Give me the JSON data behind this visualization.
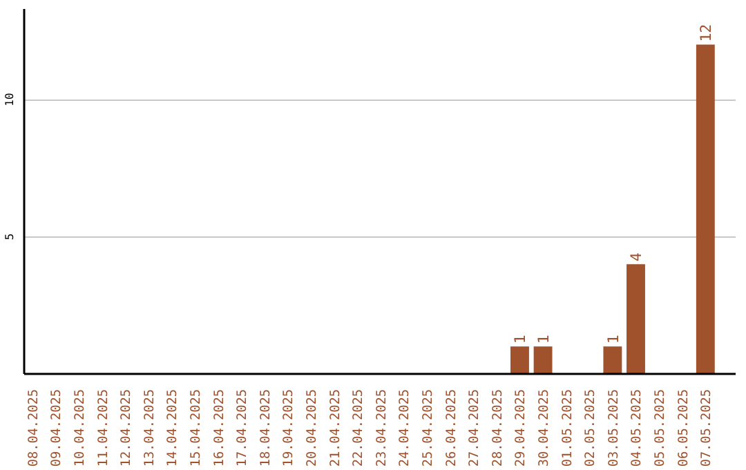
{
  "chart_data": {
    "type": "bar",
    "categories": [
      "08.04.2025",
      "09.04.2025",
      "10.04.2025",
      "11.04.2025",
      "12.04.2025",
      "13.04.2025",
      "14.04.2025",
      "15.04.2025",
      "16.04.2025",
      "17.04.2025",
      "18.04.2025",
      "19.04.2025",
      "20.04.2025",
      "21.04.2025",
      "22.04.2025",
      "23.04.2025",
      "24.04.2025",
      "25.04.2025",
      "26.04.2025",
      "27.04.2025",
      "28.04.2025",
      "29.04.2025",
      "30.04.2025",
      "01.05.2025",
      "02.05.2025",
      "03.05.2025",
      "04.05.2025",
      "05.05.2025",
      "06.05.2025",
      "07.05.2025"
    ],
    "values": [
      0,
      0,
      0,
      0,
      0,
      0,
      0,
      0,
      0,
      0,
      0,
      0,
      0,
      0,
      0,
      0,
      0,
      0,
      0,
      0,
      0,
      1,
      1,
      0,
      0,
      1,
      4,
      0,
      0,
      12
    ],
    "value_labels": [
      null,
      null,
      null,
      null,
      null,
      null,
      null,
      null,
      null,
      null,
      null,
      null,
      null,
      null,
      null,
      null,
      null,
      null,
      null,
      null,
      null,
      "1",
      "1",
      null,
      null,
      "1",
      "4",
      null,
      null,
      "12"
    ],
    "color": "#a0522d",
    "ylim": [
      0,
      13.3
    ],
    "yticks": [
      5,
      10
    ],
    "grid": "y"
  }
}
